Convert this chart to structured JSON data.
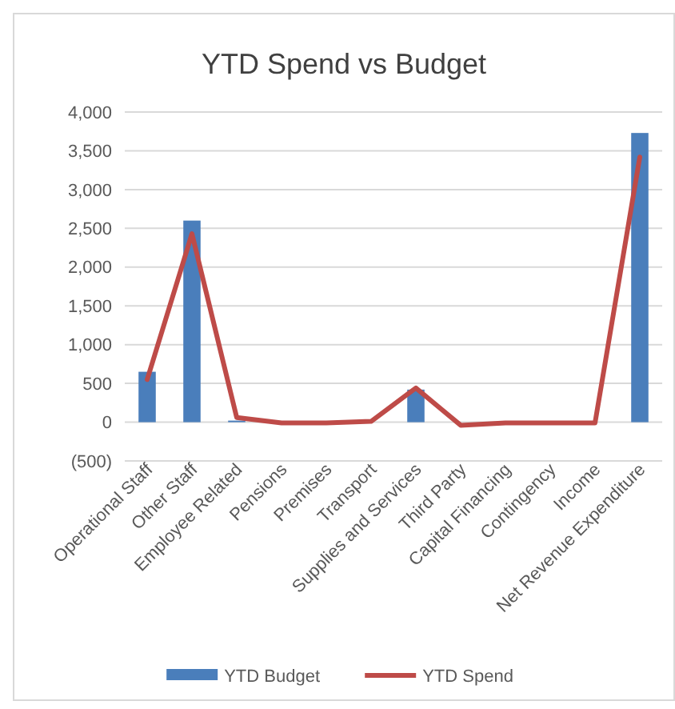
{
  "chart_data": {
    "type": "bar",
    "title": "YTD Spend vs Budget",
    "categories": [
      "Operational Staff",
      "Other Staff",
      "Employee Related",
      "Pensions",
      "Premises",
      "Transport",
      "Supplies and Services",
      "Third Party",
      "Capital Financing",
      "Contingency",
      "Income",
      "Net Revenue Expenditure"
    ],
    "series": [
      {
        "name": "YTD Budget",
        "color": "#4a7ebb",
        "values": [
          650,
          2600,
          20,
          0,
          0,
          0,
          420,
          0,
          0,
          0,
          0,
          3730
        ]
      },
      {
        "name": "YTD Spend",
        "type": "line",
        "color": "#be4b48",
        "values": [
          550,
          2430,
          60,
          -10,
          -10,
          10,
          440,
          -40,
          -10,
          -10,
          -10,
          3420
        ]
      }
    ],
    "ylim": [
      -500,
      4000
    ],
    "yticks": [
      {
        "value": -500,
        "label": "(500)"
      },
      {
        "value": 0,
        "label": "0"
      },
      {
        "value": 500,
        "label": "500"
      },
      {
        "value": 1000,
        "label": "1,000"
      },
      {
        "value": 1500,
        "label": "1,500"
      },
      {
        "value": 2000,
        "label": "2,000"
      },
      {
        "value": 2500,
        "label": "2,500"
      },
      {
        "value": 3000,
        "label": "3,000"
      },
      {
        "value": 3500,
        "label": "3,500"
      },
      {
        "value": 4000,
        "label": "4,000"
      }
    ],
    "grid": "y",
    "legend": "bottom"
  }
}
